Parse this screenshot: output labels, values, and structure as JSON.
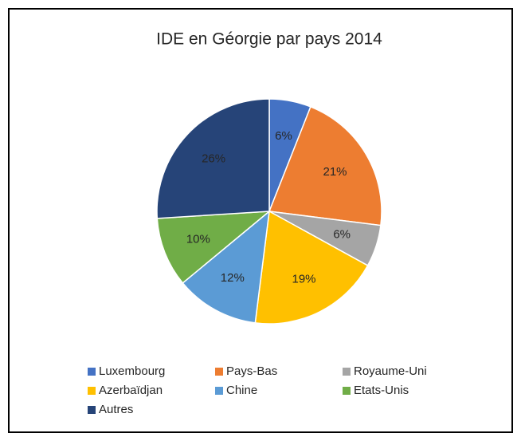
{
  "chart_data": {
    "type": "pie",
    "title": "IDE en Géorgie par pays 2014",
    "categories": [
      "Luxembourg",
      "Pays-Bas",
      "Royaume-Uni",
      "Azerbaïdjan",
      "Chine",
      "Etats-Unis",
      "Autres"
    ],
    "values": [
      6,
      21,
      6,
      19,
      12,
      10,
      26
    ],
    "value_labels": [
      "6%",
      "21%",
      "6%",
      "19%",
      "12%",
      "10%",
      "26%"
    ],
    "colors": [
      "#4472c4",
      "#ed7d31",
      "#a5a5a5",
      "#ffc000",
      "#5b9bd5",
      "#70ad47",
      "#264478"
    ],
    "legend": "bottom"
  }
}
